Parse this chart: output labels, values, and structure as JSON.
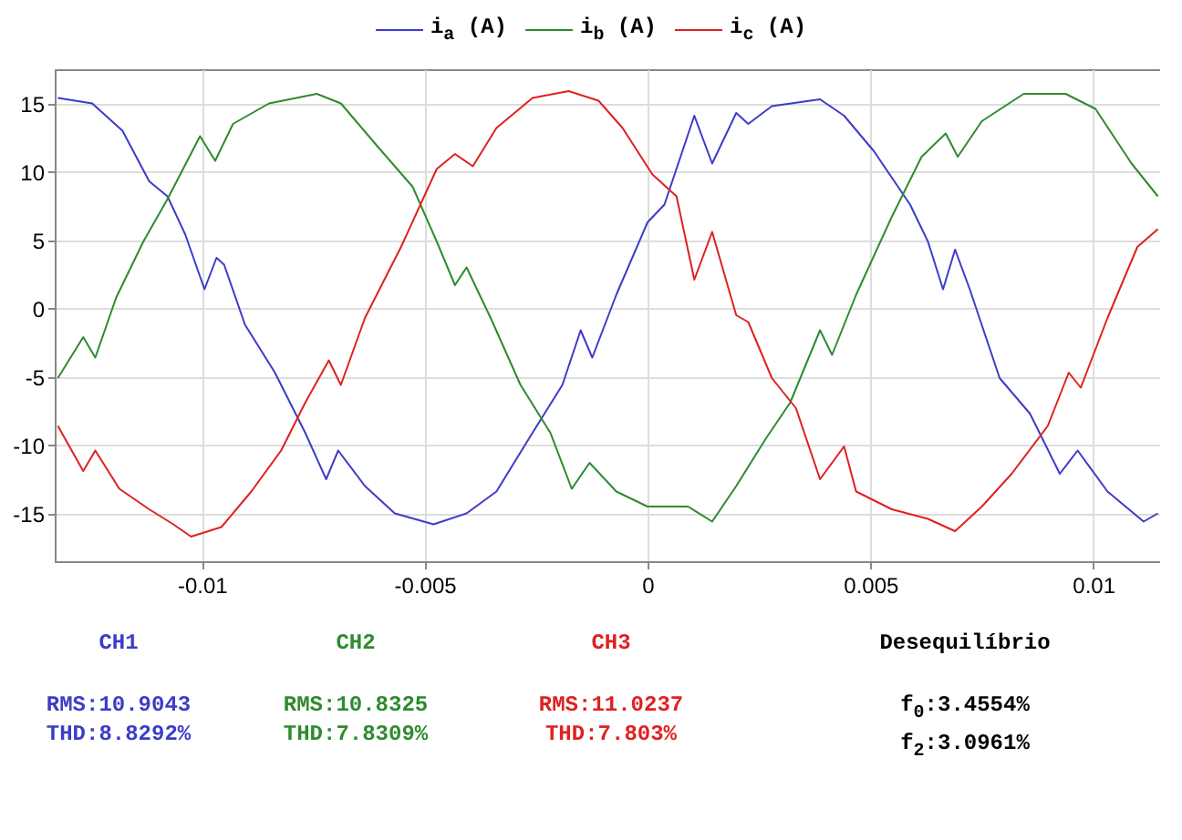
{
  "chart_data": {
    "type": "line",
    "legend": "top",
    "grid": true,
    "marker": "none",
    "line_style": "solid",
    "xlim": [
      -0.0133,
      0.0115
    ],
    "xticks": [
      -0.01,
      -0.005,
      0,
      0.005,
      0.01
    ],
    "ylim": [
      -18.5,
      17.5
    ],
    "yticks": [
      -15,
      -10,
      -5,
      0,
      5,
      10,
      15
    ],
    "series": [
      {
        "name": "i$_{a}$ (A)",
        "color": "#3c3cc8",
        "x": [
          -0.01323,
          -0.01246,
          -0.01178,
          -0.01118,
          -0.01077,
          -0.01037,
          -0.00994,
          -0.00967,
          -0.0095,
          -0.00903,
          -0.00836,
          -0.00768,
          -0.00721,
          -0.00694,
          -0.00634,
          -0.00567,
          -0.0048,
          -0.00406,
          -0.00339,
          -0.00258,
          -0.00191,
          -0.0015,
          -0.00124,
          -0.0007,
          0.0,
          0.00038,
          0.00105,
          0.00145,
          0.00199,
          0.00226,
          0.00279,
          0.00387,
          0.00441,
          0.00508,
          0.00589,
          0.00629,
          0.00663,
          0.0069,
          0.00723,
          0.0079,
          0.00858,
          0.00925,
          0.00965,
          0.01032,
          0.01113,
          0.01145
        ],
        "values": [
          15.4,
          15.0,
          13.0,
          9.3,
          8.2,
          5.4,
          1.4,
          3.7,
          3.2,
          -1.2,
          -4.7,
          -9.1,
          -12.5,
          -10.4,
          -13.0,
          -15.0,
          -15.8,
          -15.0,
          -13.4,
          -9.1,
          -5.6,
          -1.6,
          -3.6,
          1.0,
          6.3,
          7.6,
          14.1,
          10.6,
          14.3,
          13.5,
          14.8,
          15.3,
          14.1,
          11.5,
          7.6,
          4.9,
          1.4,
          4.3,
          1.4,
          -5.1,
          -7.7,
          -12.1,
          -10.4,
          -13.4,
          -15.6,
          -15.0
        ]
      },
      {
        "name": "i$_{b}$ (A)",
        "color": "#2e8b2e",
        "x": [
          -0.01323,
          -0.01266,
          -0.01239,
          -0.01192,
          -0.01131,
          -0.01077,
          -0.01004,
          -0.0097,
          -0.0093,
          -0.00849,
          -0.00742,
          -0.00688,
          -0.00607,
          -0.00527,
          -0.00473,
          -0.00432,
          -0.00406,
          -0.00352,
          -0.00285,
          -0.00218,
          -0.0017,
          -0.0013,
          -0.0007,
          0.0,
          0.00091,
          0.00145,
          0.00199,
          0.00266,
          0.0032,
          0.00387,
          0.00414,
          0.00468,
          0.00548,
          0.00615,
          0.00669,
          0.00696,
          0.0075,
          0.00844,
          0.00938,
          0.01005,
          0.01086,
          0.01145
        ],
        "values": [
          -5.1,
          -2.1,
          -3.6,
          0.8,
          4.9,
          8.0,
          12.6,
          10.8,
          13.5,
          15.0,
          15.7,
          15.0,
          11.9,
          8.9,
          4.9,
          1.7,
          3.0,
          -0.7,
          -5.6,
          -9.1,
          -13.2,
          -11.3,
          -13.4,
          -14.5,
          -14.5,
          -15.6,
          -13.0,
          -9.5,
          -6.9,
          -1.6,
          -3.4,
          1.0,
          6.7,
          11.1,
          12.8,
          11.1,
          13.7,
          15.7,
          15.7,
          14.6,
          10.6,
          8.2
        ]
      },
      {
        "name": "i$_{c}$ (A)",
        "color": "#e02020",
        "x": [
          -0.01323,
          -0.01266,
          -0.01239,
          -0.01185,
          -0.01118,
          -0.01064,
          -0.01024,
          -0.00956,
          -0.00889,
          -0.00822,
          -0.00768,
          -0.00715,
          -0.00688,
          -0.00634,
          -0.00553,
          -0.00473,
          -0.00432,
          -0.00392,
          -0.00339,
          -0.00258,
          -0.00177,
          -0.0011,
          -0.00056,
          0.00011,
          0.00065,
          0.00105,
          0.00145,
          0.00199,
          0.00226,
          0.00279,
          0.00333,
          0.00387,
          0.00441,
          0.00468,
          0.00548,
          0.00629,
          0.0069,
          0.0075,
          0.00817,
          0.00898,
          0.00945,
          0.00972,
          0.01032,
          0.01099,
          0.01145
        ],
        "values": [
          -8.6,
          -11.9,
          -10.4,
          -13.2,
          -14.7,
          -15.8,
          -16.7,
          -16.0,
          -13.4,
          -10.4,
          -6.9,
          -3.8,
          -5.6,
          -0.7,
          4.5,
          10.2,
          11.3,
          10.4,
          13.2,
          15.4,
          15.9,
          15.2,
          13.2,
          9.8,
          8.2,
          2.1,
          5.6,
          -0.5,
          -1.0,
          -5.1,
          -7.3,
          -12.5,
          -10.1,
          -13.4,
          -14.7,
          -15.4,
          -16.3,
          -14.5,
          -12.1,
          -8.6,
          -4.7,
          -5.8,
          -0.7,
          4.5,
          5.8
        ]
      }
    ],
    "annotations": [
      "CH1",
      "RMS:10.9043",
      "THD:8.8292%",
      "CH2",
      "RMS:10.8325",
      "THD:7.8309%",
      "CH3",
      "RMS:11.0237",
      "THD:7.803%",
      "Desequilíbrio",
      "f$_{0}$:3.4554%",
      "f$_{2}$:3.0961%"
    ]
  }
}
